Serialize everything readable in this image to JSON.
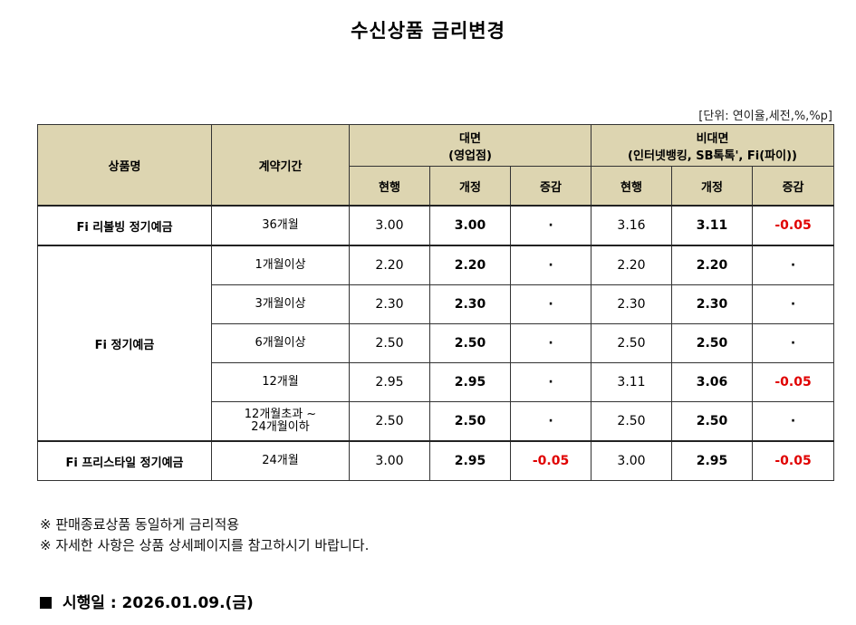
{
  "title": "수신상품 금리변경",
  "unit_note": "[단위: 연이율,세전,%,%p]",
  "header": {
    "product": "상품명",
    "term": "계약기간",
    "face_to_face": "대면",
    "face_to_face_sub": "(영업점)",
    "non_face": "비대면",
    "non_face_sub": "(인터넷뱅킹, SB톡톡', Fi(파이))",
    "current": "현행",
    "revised": "개정",
    "change": "증감"
  },
  "products": [
    {
      "name": "Fi 리볼빙 정기예금",
      "rows": [
        {
          "term": "36개월",
          "f_cur": "3.00",
          "f_new": "3.00",
          "f_chg": "·",
          "n_cur": "3.16",
          "n_new": "3.11",
          "n_chg": "-0.05"
        }
      ]
    },
    {
      "name": "Fi 정기예금",
      "rows": [
        {
          "term": "1개월이상",
          "f_cur": "2.20",
          "f_new": "2.20",
          "f_chg": "·",
          "n_cur": "2.20",
          "n_new": "2.20",
          "n_chg": "·"
        },
        {
          "term": "3개월이상",
          "f_cur": "2.30",
          "f_new": "2.30",
          "f_chg": "·",
          "n_cur": "2.30",
          "n_new": "2.30",
          "n_chg": "·"
        },
        {
          "term": "6개월이상",
          "f_cur": "2.50",
          "f_new": "2.50",
          "f_chg": "·",
          "n_cur": "2.50",
          "n_new": "2.50",
          "n_chg": "·"
        },
        {
          "term": "12개월",
          "f_cur": "2.95",
          "f_new": "2.95",
          "f_chg": "·",
          "n_cur": "3.11",
          "n_new": "3.06",
          "n_chg": "-0.05"
        },
        {
          "term": "12개월초과 ~\n24개월이하",
          "f_cur": "2.50",
          "f_new": "2.50",
          "f_chg": "·",
          "n_cur": "2.50",
          "n_new": "2.50",
          "n_chg": "·"
        }
      ]
    },
    {
      "name": "Fi 프리스타일 정기예금",
      "rows": [
        {
          "term": "24개월",
          "f_cur": "3.00",
          "f_new": "2.95",
          "f_chg": "-0.05",
          "n_cur": "3.00",
          "n_new": "2.95",
          "n_chg": "-0.05"
        }
      ]
    }
  ],
  "notes": [
    "※ 판매종료상품 동일하게 금리적용",
    "※ 자세한 사항은 상품 상세페이지를 참고하시기 바랍니다."
  ],
  "effective_date": "시행일 : 2026.01.09.(금)",
  "colors": {
    "header_bg": "#ddd5b1",
    "negative": "#e00000"
  }
}
